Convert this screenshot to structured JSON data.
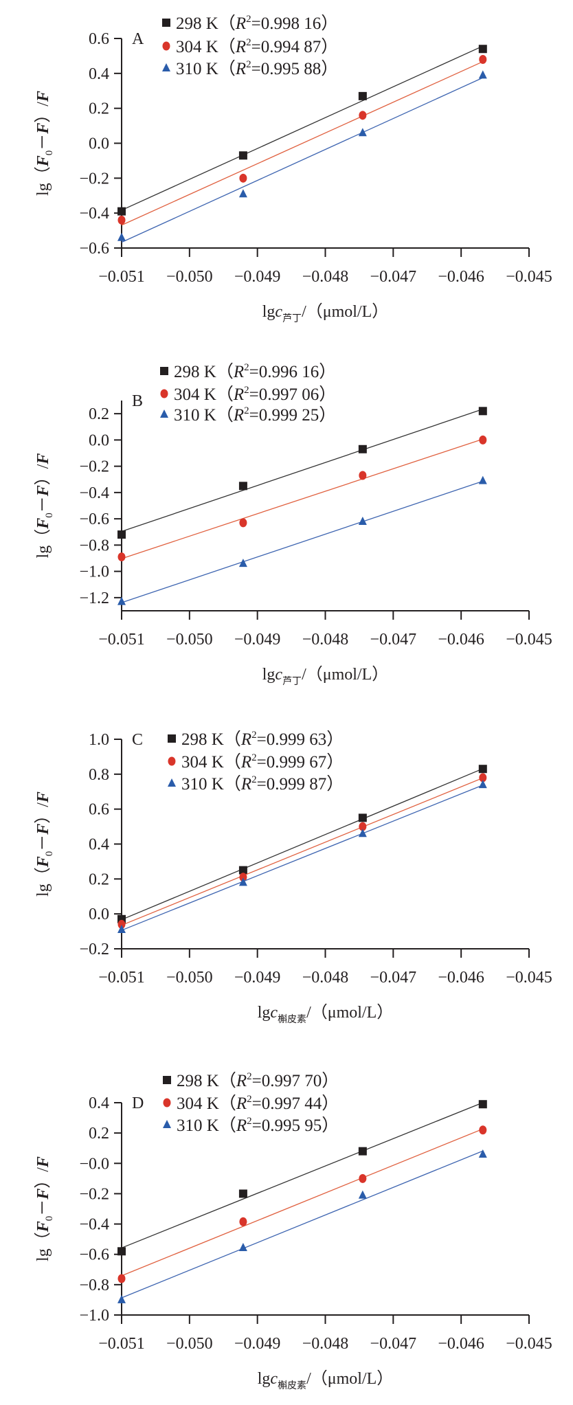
{
  "colors": {
    "298 K": "#231f20",
    "304 K": "#d9352a",
    "310 K": "#2a5caa",
    "line_298": "#333333",
    "line_304": "#e0603f",
    "line_310": "#3d64b0"
  },
  "chart_data": [
    {
      "type": "scatter",
      "panel": "A",
      "fit": "linear",
      "ylabel": {
        "prefix": "lg（",
        "f0": "F",
        "sub0": "0",
        "minus": "－",
        "f": "F",
        "mid": "）/",
        "f2": "F"
      },
      "xlabel": {
        "prefix": "lg",
        "var": "c",
        "subscript": "芦丁",
        "suffix": "/（μmol/L）"
      },
      "xlim": [
        -0.051,
        -0.045
      ],
      "xticks": [
        "−0.051",
        "−0.050",
        "−0.049",
        "−0.048",
        "−0.047",
        "−0.046",
        "−0.045"
      ],
      "xtick_values": [
        -0.051,
        -0.05,
        -0.049,
        -0.048,
        -0.047,
        -0.046,
        -0.045
      ],
      "ylim": [
        -0.6,
        0.6
      ],
      "yticks": [
        "−0.6",
        "−0.4",
        "−0.2",
        "0.0",
        "0.2",
        "0.4",
        "0.6"
      ],
      "ytick_values": [
        -0.6,
        -0.4,
        -0.2,
        0.0,
        0.2,
        0.4,
        0.6
      ],
      "x": [
        -0.051,
        -0.04921,
        -0.04745,
        -0.04568
      ],
      "legend_position": "top",
      "series": [
        {
          "name": "298 K",
          "r2": "0.998 16",
          "marker": "square",
          "values": [
            -0.39,
            -0.07,
            0.27,
            0.54
          ]
        },
        {
          "name": "304 K",
          "r2": "0.994 87",
          "marker": "circle",
          "values": [
            -0.44,
            -0.2,
            0.16,
            0.48
          ]
        },
        {
          "name": "310 K",
          "r2": "0.995 88",
          "marker": "triangle",
          "values": [
            -0.54,
            -0.29,
            0.06,
            0.39
          ]
        }
      ]
    },
    {
      "type": "scatter",
      "panel": "B",
      "fit": "linear",
      "ylabel": {
        "prefix": "lg（",
        "f0": "F",
        "sub0": "0",
        "minus": "－",
        "f": "F",
        "mid": "）/",
        "f2": "F"
      },
      "xlabel": {
        "prefix": "lg",
        "var": "c",
        "subscript": "芦丁",
        "suffix": "/（μmol/L）"
      },
      "xlim": [
        -0.051,
        -0.045
      ],
      "xticks": [
        "−0.051",
        "−0.050",
        "−0.049",
        "−0.048",
        "−0.047",
        "−0.046",
        "−0.045"
      ],
      "xtick_values": [
        -0.051,
        -0.05,
        -0.049,
        -0.048,
        -0.047,
        -0.046,
        -0.045
      ],
      "ylim": [
        -1.3,
        0.3
      ],
      "yticks": [
        "−1.2",
        "−1.0",
        "−0.8",
        "−0.6",
        "−0.4",
        "−0.2",
        "0.0",
        "0.2"
      ],
      "ytick_values": [
        -1.2,
        -1.0,
        -0.8,
        -0.6,
        -0.4,
        -0.2,
        0.0,
        0.2
      ],
      "x": [
        -0.051,
        -0.04921,
        -0.04745,
        -0.04568
      ],
      "legend_position": "top",
      "series": [
        {
          "name": "298 K",
          "r2": "0.996 16",
          "marker": "square",
          "values": [
            -0.72,
            -0.35,
            -0.07,
            0.22
          ]
        },
        {
          "name": "304 K",
          "r2": "0.997 06",
          "marker": "circle",
          "values": [
            -0.89,
            -0.63,
            -0.27,
            0.0
          ]
        },
        {
          "name": "310 K",
          "r2": "0.999 25",
          "marker": "triangle",
          "values": [
            -1.23,
            -0.94,
            -0.62,
            -0.31
          ]
        }
      ]
    },
    {
      "type": "scatter",
      "panel": "C",
      "fit": "linear",
      "ylabel": {
        "prefix": "lg（",
        "f0": "F",
        "sub0": "0",
        "minus": "－",
        "f": "F",
        "mid": "）/",
        "f2": "F"
      },
      "xlabel": {
        "prefix": "lg",
        "var": "c",
        "subscript": "槲皮素",
        "suffix": "/（μmol/L）"
      },
      "xlim": [
        -0.051,
        -0.045
      ],
      "xticks": [
        "−0.051",
        "−0.050",
        "−0.049",
        "−0.048",
        "−0.047",
        "−0.046",
        "−0.045"
      ],
      "xtick_values": [
        -0.051,
        -0.05,
        -0.049,
        -0.048,
        -0.047,
        -0.046,
        -0.045
      ],
      "ylim": [
        -0.2,
        1.0
      ],
      "yticks": [
        "−0.2",
        "0.0",
        "0.2",
        "0.4",
        "0.6",
        "0.8",
        "1.0"
      ],
      "ytick_values": [
        -0.2,
        0.0,
        0.2,
        0.4,
        0.6,
        0.8,
        1.0
      ],
      "x": [
        -0.051,
        -0.04921,
        -0.04745,
        -0.04568
      ],
      "legend_position": "top",
      "series": [
        {
          "name": "298 K",
          "r2": "0.999 63",
          "marker": "square",
          "values": [
            -0.03,
            0.25,
            0.55,
            0.83
          ]
        },
        {
          "name": "304 K",
          "r2": "0.999 67",
          "marker": "circle",
          "values": [
            -0.06,
            0.21,
            0.5,
            0.78
          ]
        },
        {
          "name": "310 K",
          "r2": "0.999 87",
          "marker": "triangle",
          "values": [
            -0.09,
            0.18,
            0.46,
            0.74
          ]
        }
      ]
    },
    {
      "type": "scatter",
      "panel": "D",
      "fit": "linear",
      "ylabel": {
        "prefix": "lg（",
        "f0": "F",
        "sub0": "0",
        "minus": "－",
        "f": "F",
        "mid": "）/",
        "f2": "F"
      },
      "xlabel": {
        "prefix": "lg",
        "var": "c",
        "subscript": "槲皮素",
        "suffix": "/（μmol/L）"
      },
      "xlim": [
        -0.051,
        -0.045
      ],
      "xticks": [
        "−0.051",
        "−0.050",
        "−0.049",
        "−0.048",
        "−0.047",
        "−0.046",
        "−0.045"
      ],
      "xtick_values": [
        -0.051,
        -0.05,
        -0.049,
        -0.048,
        -0.047,
        -0.046,
        -0.045
      ],
      "ylim": [
        -1.0,
        0.4
      ],
      "yticks": [
        "−1.0",
        "−0.8",
        "−0.6",
        "−0.4",
        "−0.2",
        "−0.0",
        "0.2",
        "0.4"
      ],
      "ytick_values": [
        -1.0,
        -0.8,
        -0.6,
        -0.4,
        -0.2,
        0.0,
        0.2,
        0.4
      ],
      "x": [
        -0.051,
        -0.04921,
        -0.04745,
        -0.04568
      ],
      "legend_position": "top",
      "series": [
        {
          "name": "298 K",
          "r2": "0.997 70",
          "marker": "square",
          "values": [
            -0.58,
            -0.2,
            0.08,
            0.39
          ]
        },
        {
          "name": "304 K",
          "r2": "0.997 44",
          "marker": "circle",
          "values": [
            -0.76,
            -0.385,
            -0.1,
            0.22
          ]
        },
        {
          "name": "310 K",
          "r2": "0.995 95",
          "marker": "triangle",
          "values": [
            -0.9,
            -0.556,
            -0.21,
            0.06
          ]
        }
      ]
    }
  ]
}
